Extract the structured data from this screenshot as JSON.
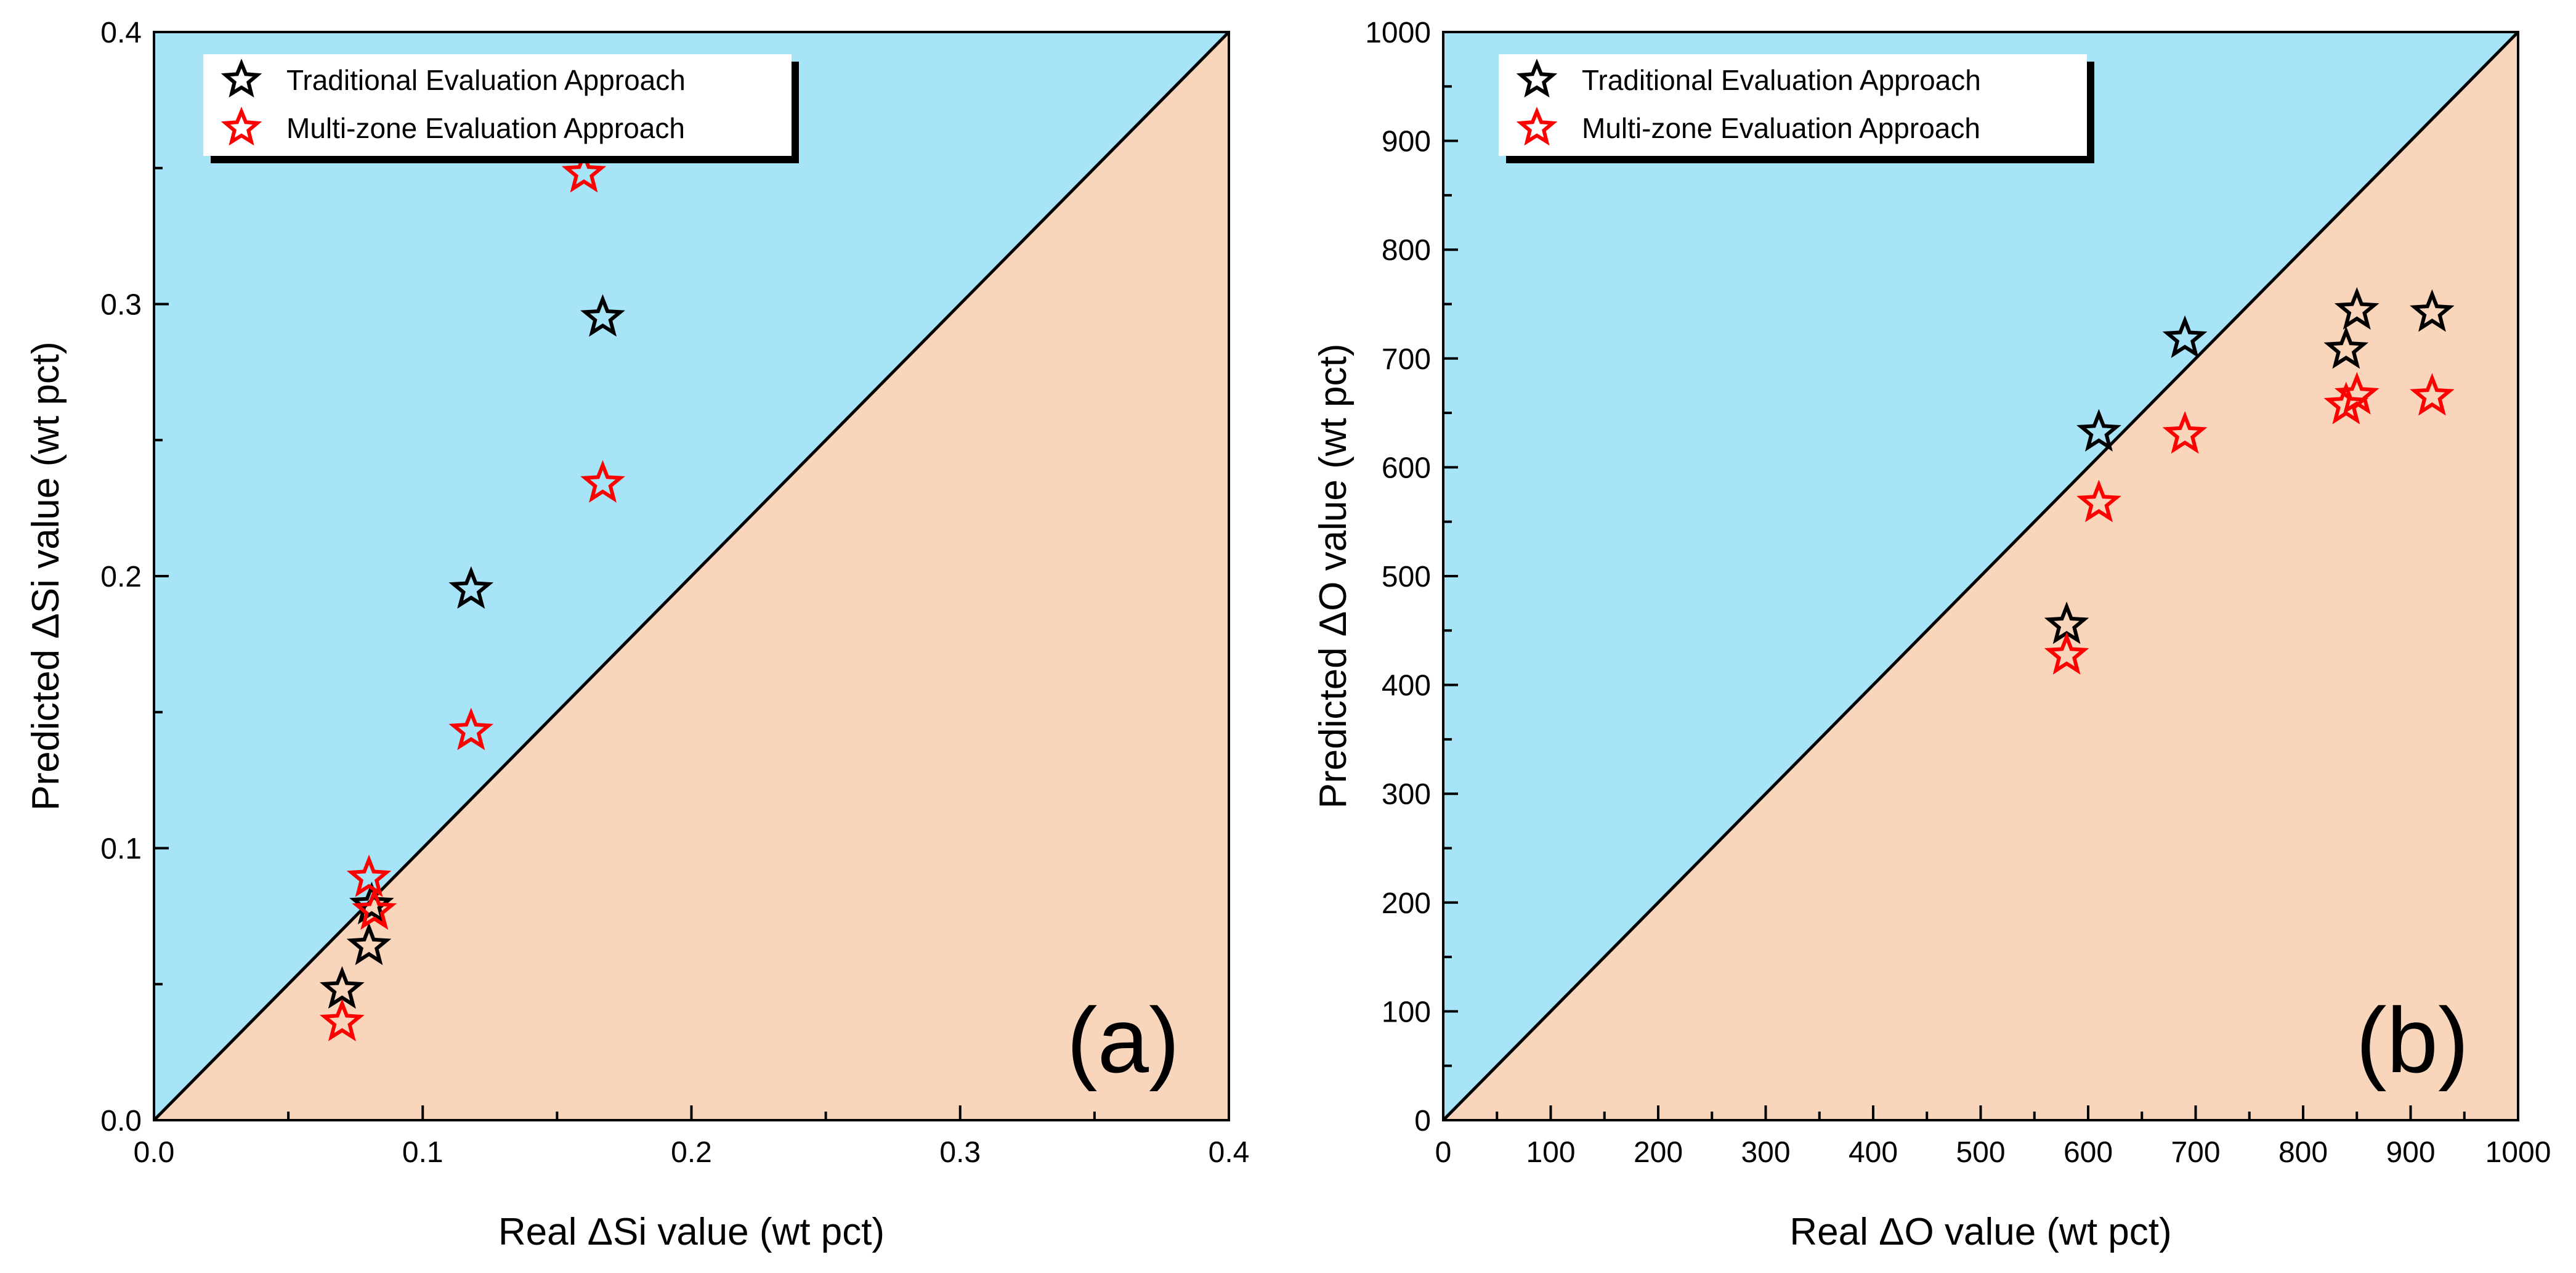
{
  "chart_data": [
    {
      "type": "scatter",
      "panel_label": "(a)",
      "xlabel": "Real ΔSi value (wt pct)",
      "ylabel": "Predicted ΔSi value (wt pct)",
      "xlim": [
        0,
        0.4
      ],
      "ylim": [
        0,
        0.4
      ],
      "x_ticks": [
        "0.0",
        "0.1",
        "0.2",
        "0.3",
        "0.4"
      ],
      "x_tick_values": [
        0,
        0.1,
        0.2,
        0.3,
        0.4
      ],
      "y_ticks": [
        "0.0",
        "0.1",
        "0.2",
        "0.3",
        "0.4"
      ],
      "y_tick_values": [
        0,
        0.1,
        0.2,
        0.3,
        0.4
      ],
      "minor_tick_step": 0.05,
      "grid": false,
      "diagonal": "y = x",
      "region_above_color": "#a8e4f8",
      "region_below_color": "#f9d6bb",
      "legend_position": "top-left",
      "series": [
        {
          "name": "Traditional Evaluation Approach",
          "color": "#000000",
          "marker": "star-outline",
          "x": [
            0.07,
            0.08,
            0.081,
            0.118,
            0.167
          ],
          "y": [
            0.048,
            0.064,
            0.079,
            0.195,
            0.295
          ]
        },
        {
          "name": "Multi-zone Evaluation Approach",
          "color": "#ff0000",
          "marker": "star-outline",
          "x": [
            0.07,
            0.08,
            0.082,
            0.118,
            0.16,
            0.167
          ],
          "y": [
            0.036,
            0.089,
            0.077,
            0.143,
            0.348,
            0.234
          ]
        }
      ]
    },
    {
      "type": "scatter",
      "panel_label": "(b)",
      "xlabel": "Real ΔO value (wt pct)",
      "ylabel": "Predicted ΔO value (wt pct)",
      "xlim": [
        0,
        1000
      ],
      "ylim": [
        0,
        1000
      ],
      "x_ticks": [
        "0",
        "100",
        "200",
        "300",
        "400",
        "500",
        "600",
        "700",
        "800",
        "900",
        "1000"
      ],
      "x_tick_values": [
        0,
        100,
        200,
        300,
        400,
        500,
        600,
        700,
        800,
        900,
        1000
      ],
      "y_ticks": [
        "0",
        "100",
        "200",
        "300",
        "400",
        "500",
        "600",
        "700",
        "800",
        "900",
        "1000"
      ],
      "y_tick_values": [
        0,
        100,
        200,
        300,
        400,
        500,
        600,
        700,
        800,
        900,
        1000
      ],
      "minor_tick_step": 50,
      "grid": false,
      "diagonal": "y = x",
      "region_above_color": "#a8e4f8",
      "region_below_color": "#f9d6bb",
      "legend_position": "top-left",
      "series": [
        {
          "name": "Traditional Evaluation Approach",
          "color": "#000000",
          "marker": "star-outline",
          "x": [
            580,
            610,
            690,
            840,
            850,
            920
          ],
          "y": [
            455,
            632,
            718,
            708,
            744,
            742
          ]
        },
        {
          "name": "Multi-zone Evaluation Approach",
          "color": "#ff0000",
          "marker": "star-outline",
          "x": [
            580,
            610,
            690,
            840,
            850,
            920
          ],
          "y": [
            427,
            567,
            630,
            657,
            666,
            665
          ]
        }
      ]
    }
  ]
}
